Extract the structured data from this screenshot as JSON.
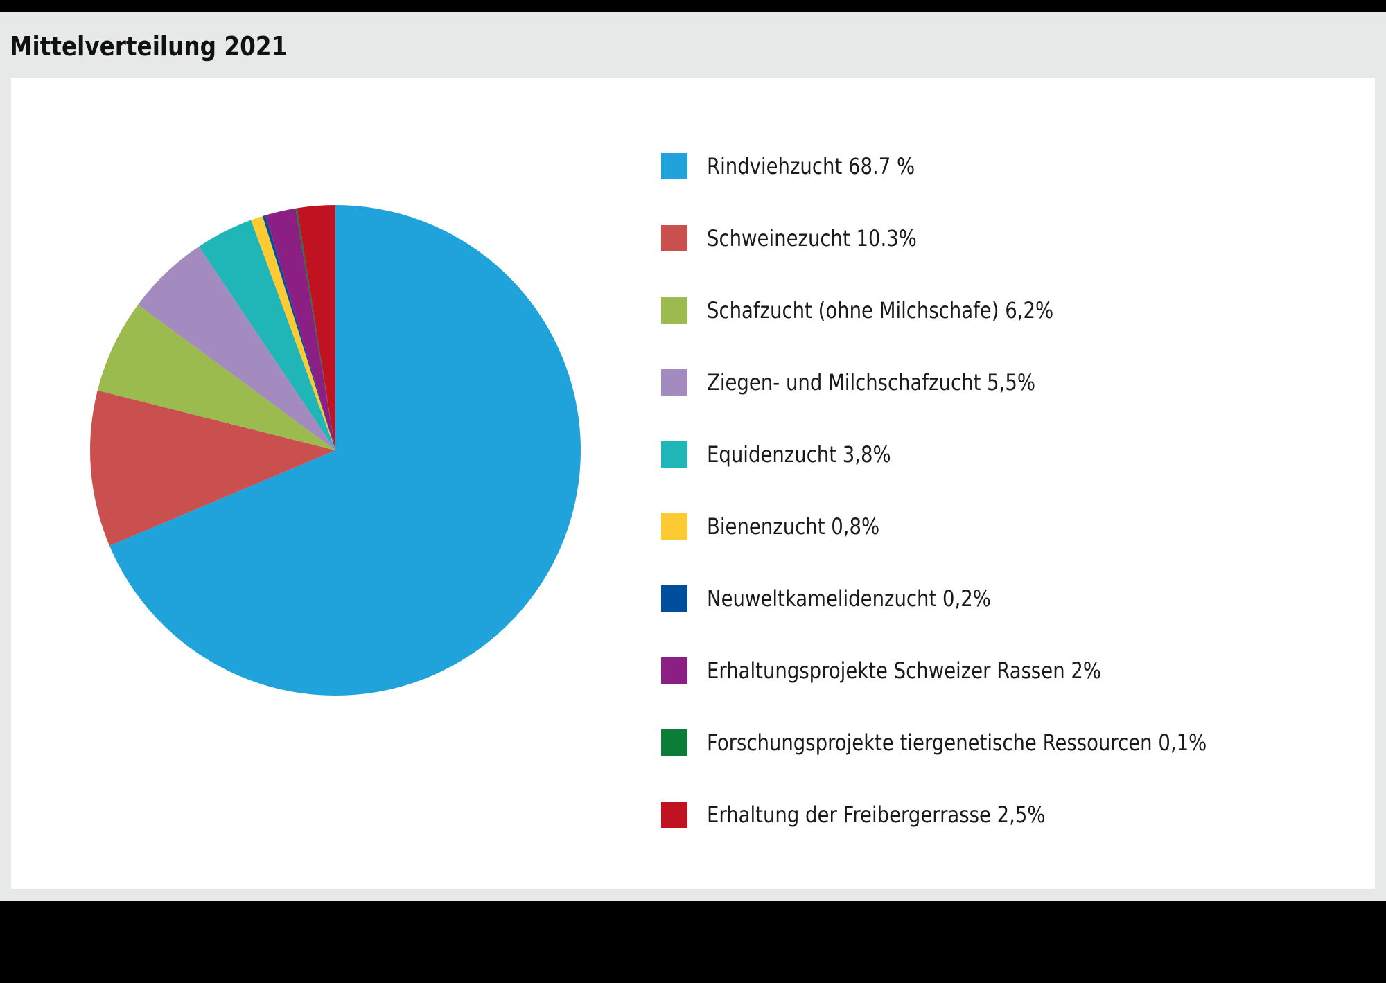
{
  "chart_data": {
    "type": "pie",
    "title": "Mittelverteilung 2021",
    "legend_position": "right",
    "start_angle": "12 o'clock, clockwise",
    "slices": [
      {
        "label": "Rindviehzucht 68.7 %",
        "value": 68.7,
        "color": "#1fa3da"
      },
      {
        "label": "Schweinezucht 10.3%",
        "value": 10.3,
        "color": "#c9504f"
      },
      {
        "label": "Schafzucht (ohne Milchschafe) 6,2%",
        "value": 6.2,
        "color": "#9bbb4e"
      },
      {
        "label": "Ziegen- und Milchschafzucht 5,5%",
        "value": 5.5,
        "color": "#a38bbf"
      },
      {
        "label": "Equidenzucht 3,8%",
        "value": 3.8,
        "color": "#20b6b8"
      },
      {
        "label": "Bienenzucht 0,8%",
        "value": 0.8,
        "color": "#fcca33"
      },
      {
        "label": "Neuweltkamelidenzucht 0,2%",
        "value": 0.2,
        "color": "#004f9f"
      },
      {
        "label": "Erhaltungsprojekte Schweizer Rassen 2%",
        "value": 2,
        "color": "#8c1f83"
      },
      {
        "label": "Forschungsprojekte tiergenetische Ressourcen 0,1%",
        "value": 0.1,
        "color": "#0b7d36"
      },
      {
        "label": "Erhaltung der Freibergerrasse 2,5%",
        "value": 2.5,
        "color": "#c01220"
      }
    ]
  }
}
